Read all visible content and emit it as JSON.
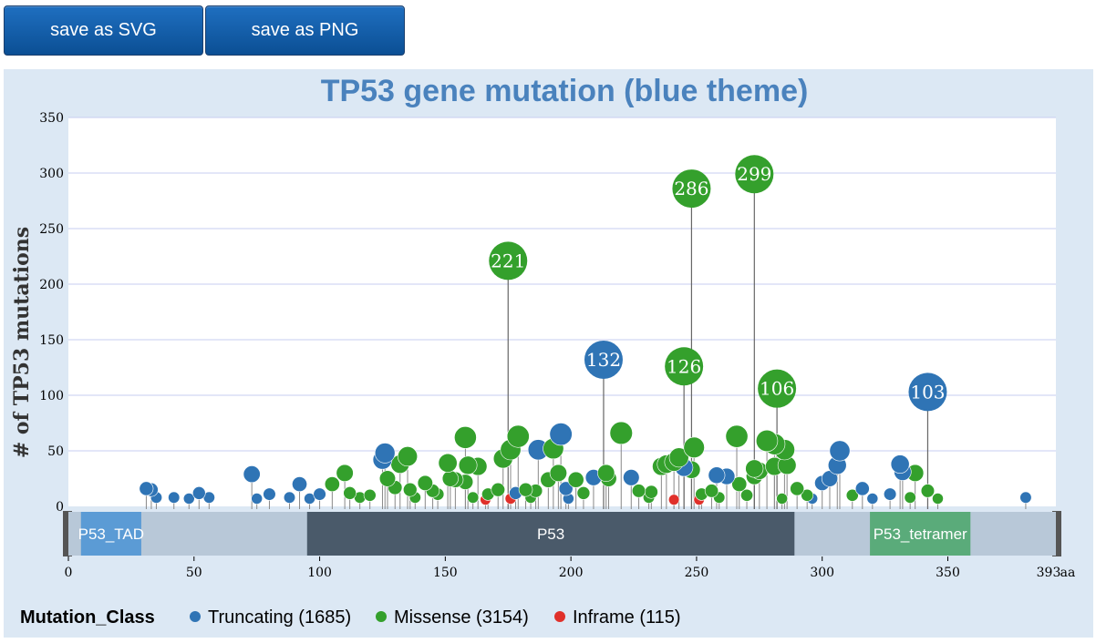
{
  "buttons": {
    "svg_label": "save as SVG",
    "png_label": "save as PNG"
  },
  "colors": {
    "truncating": "#2f74b5",
    "missense": "#34a02c",
    "inframe": "#e0302a",
    "title": "#4a82bd",
    "background": "#dce8f4"
  },
  "chart_data": {
    "type": "lollipop",
    "title": "TP53 gene mutation (blue theme)",
    "xlabel": "",
    "ylabel": "# of TP53 mutations",
    "x_unit_label": "aa",
    "xlim": [
      0,
      393
    ],
    "ylim": [
      0,
      350
    ],
    "x_ticks": [
      "0",
      "50",
      "100",
      "150",
      "200",
      "250",
      "300",
      "350"
    ],
    "x_end_label": "393",
    "y_ticks": [
      "0",
      "50",
      "100",
      "150",
      "200",
      "250",
      "300",
      "350"
    ],
    "grid": true,
    "domains": [
      {
        "name": "",
        "start": 0,
        "end": 96,
        "color": "#b8c8d8"
      },
      {
        "name": "P53_TAD",
        "start": 5,
        "end": 29,
        "color": "#5b9bd5"
      },
      {
        "name": "P53",
        "start": 95,
        "end": 289,
        "color": "#4a5a6a"
      },
      {
        "name": "",
        "start": 289,
        "end": 393,
        "color": "#b8c8d8"
      },
      {
        "name": "P53_tetramer",
        "start": 319,
        "end": 359,
        "color": "#5aab7a"
      }
    ],
    "labeled_points": [
      {
        "x": 273,
        "y": 299,
        "label": "299",
        "class": "missense"
      },
      {
        "x": 248,
        "y": 286,
        "label": "286",
        "class": "missense"
      },
      {
        "x": 175,
        "y": 221,
        "label": "221",
        "class": "missense"
      },
      {
        "x": 213,
        "y": 132,
        "label": "132",
        "class": "truncating"
      },
      {
        "x": 245,
        "y": 126,
        "label": "126",
        "class": "missense"
      },
      {
        "x": 282,
        "y": 106,
        "label": "106",
        "class": "missense"
      },
      {
        "x": 342,
        "y": 103,
        "label": "103",
        "class": "truncating"
      }
    ],
    "points": [
      {
        "x": 196,
        "y": 65,
        "class": "truncating"
      },
      {
        "x": 179,
        "y": 63,
        "class": "missense"
      },
      {
        "x": 220,
        "y": 66,
        "class": "missense"
      },
      {
        "x": 266,
        "y": 63,
        "class": "missense"
      },
      {
        "x": 158,
        "y": 62,
        "class": "missense"
      },
      {
        "x": 278,
        "y": 59,
        "class": "missense"
      },
      {
        "x": 281,
        "y": 56,
        "class": "missense"
      },
      {
        "x": 193,
        "y": 52,
        "class": "missense"
      },
      {
        "x": 187,
        "y": 51,
        "class": "truncating"
      },
      {
        "x": 176,
        "y": 51,
        "class": "missense"
      },
      {
        "x": 249,
        "y": 53,
        "class": "missense"
      },
      {
        "x": 285,
        "y": 51,
        "class": "missense"
      },
      {
        "x": 307,
        "y": 50,
        "class": "truncating"
      },
      {
        "x": 126,
        "y": 48,
        "class": "truncating"
      },
      {
        "x": 135,
        "y": 45,
        "class": "missense"
      },
      {
        "x": 173,
        "y": 43,
        "class": "missense"
      },
      {
        "x": 243,
        "y": 44,
        "class": "missense"
      },
      {
        "x": 125,
        "y": 42,
        "class": "truncating"
      },
      {
        "x": 151,
        "y": 39,
        "class": "missense"
      },
      {
        "x": 132,
        "y": 38,
        "class": "missense"
      },
      {
        "x": 241,
        "y": 40,
        "class": "missense"
      },
      {
        "x": 238,
        "y": 38,
        "class": "missense"
      },
      {
        "x": 236,
        "y": 36,
        "class": "missense"
      },
      {
        "x": 159,
        "y": 37,
        "class": "missense"
      },
      {
        "x": 163,
        "y": 36,
        "class": "missense"
      },
      {
        "x": 306,
        "y": 37,
        "class": "truncating"
      },
      {
        "x": 331,
        "y": 38,
        "class": "truncating"
      },
      {
        "x": 245,
        "y": 35,
        "class": "truncating"
      },
      {
        "x": 273,
        "y": 34,
        "class": "missense"
      },
      {
        "x": 286,
        "y": 37,
        "class": "missense"
      },
      {
        "x": 281,
        "y": 36,
        "class": "missense"
      },
      {
        "x": 248,
        "y": 33,
        "class": "missense"
      },
      {
        "x": 275,
        "y": 32,
        "class": "missense"
      },
      {
        "x": 337,
        "y": 30,
        "class": "missense"
      },
      {
        "x": 332,
        "y": 31,
        "class": "truncating"
      },
      {
        "x": 110,
        "y": 30,
        "class": "missense"
      },
      {
        "x": 73,
        "y": 29,
        "class": "truncating"
      },
      {
        "x": 195,
        "y": 30,
        "class": "missense"
      },
      {
        "x": 214,
        "y": 30,
        "class": "missense"
      },
      {
        "x": 258,
        "y": 28,
        "class": "truncating"
      },
      {
        "x": 262,
        "y": 27,
        "class": "truncating"
      },
      {
        "x": 273,
        "y": 27,
        "class": "missense"
      },
      {
        "x": 209,
        "y": 26,
        "class": "truncating"
      },
      {
        "x": 224,
        "y": 26,
        "class": "truncating"
      },
      {
        "x": 152,
        "y": 25,
        "class": "missense"
      },
      {
        "x": 127,
        "y": 25,
        "class": "missense"
      },
      {
        "x": 154,
        "y": 24,
        "class": "missense"
      },
      {
        "x": 191,
        "y": 24,
        "class": "missense"
      },
      {
        "x": 202,
        "y": 24,
        "class": "missense"
      },
      {
        "x": 215,
        "y": 25,
        "class": "missense"
      },
      {
        "x": 92,
        "y": 20,
        "class": "truncating"
      },
      {
        "x": 105,
        "y": 20,
        "class": "missense"
      },
      {
        "x": 142,
        "y": 21,
        "class": "missense"
      },
      {
        "x": 158,
        "y": 22,
        "class": "missense"
      },
      {
        "x": 267,
        "y": 20,
        "class": "missense"
      },
      {
        "x": 300,
        "y": 21,
        "class": "truncating"
      },
      {
        "x": 303,
        "y": 25,
        "class": "truncating"
      },
      {
        "x": 31,
        "y": 16,
        "class": "truncating"
      },
      {
        "x": 33,
        "y": 15,
        "class": "truncating"
      },
      {
        "x": 130,
        "y": 17,
        "class": "missense"
      },
      {
        "x": 136,
        "y": 15,
        "class": "missense"
      },
      {
        "x": 145,
        "y": 14,
        "class": "missense"
      },
      {
        "x": 171,
        "y": 15,
        "class": "missense"
      },
      {
        "x": 182,
        "y": 15,
        "class": "missense"
      },
      {
        "x": 186,
        "y": 14,
        "class": "missense"
      },
      {
        "x": 198,
        "y": 16,
        "class": "truncating"
      },
      {
        "x": 227,
        "y": 14,
        "class": "missense"
      },
      {
        "x": 232,
        "y": 13,
        "class": "missense"
      },
      {
        "x": 256,
        "y": 14,
        "class": "missense"
      },
      {
        "x": 290,
        "y": 16,
        "class": "missense"
      },
      {
        "x": 316,
        "y": 16,
        "class": "truncating"
      },
      {
        "x": 342,
        "y": 14,
        "class": "missense"
      },
      {
        "x": 52,
        "y": 12,
        "class": "truncating"
      },
      {
        "x": 80,
        "y": 11,
        "class": "truncating"
      },
      {
        "x": 100,
        "y": 11,
        "class": "truncating"
      },
      {
        "x": 112,
        "y": 12,
        "class": "missense"
      },
      {
        "x": 120,
        "y": 10,
        "class": "missense"
      },
      {
        "x": 147,
        "y": 11,
        "class": "missense"
      },
      {
        "x": 167,
        "y": 11,
        "class": "missense"
      },
      {
        "x": 178,
        "y": 12,
        "class": "truncating"
      },
      {
        "x": 205,
        "y": 12,
        "class": "missense"
      },
      {
        "x": 252,
        "y": 11,
        "class": "missense"
      },
      {
        "x": 270,
        "y": 10,
        "class": "missense"
      },
      {
        "x": 294,
        "y": 10,
        "class": "missense"
      },
      {
        "x": 312,
        "y": 10,
        "class": "missense"
      },
      {
        "x": 327,
        "y": 11,
        "class": "truncating"
      },
      {
        "x": 35,
        "y": 8,
        "class": "truncating"
      },
      {
        "x": 42,
        "y": 8,
        "class": "truncating"
      },
      {
        "x": 48,
        "y": 7,
        "class": "truncating"
      },
      {
        "x": 56,
        "y": 8,
        "class": "truncating"
      },
      {
        "x": 75,
        "y": 7,
        "class": "truncating"
      },
      {
        "x": 88,
        "y": 8,
        "class": "truncating"
      },
      {
        "x": 96,
        "y": 7,
        "class": "truncating"
      },
      {
        "x": 116,
        "y": 8,
        "class": "missense"
      },
      {
        "x": 138,
        "y": 8,
        "class": "missense"
      },
      {
        "x": 161,
        "y": 8,
        "class": "missense"
      },
      {
        "x": 184,
        "y": 8,
        "class": "missense"
      },
      {
        "x": 199,
        "y": 7,
        "class": "truncating"
      },
      {
        "x": 231,
        "y": 8,
        "class": "missense"
      },
      {
        "x": 259,
        "y": 8,
        "class": "missense"
      },
      {
        "x": 284,
        "y": 7,
        "class": "missense"
      },
      {
        "x": 296,
        "y": 7,
        "class": "truncating"
      },
      {
        "x": 320,
        "y": 7,
        "class": "truncating"
      },
      {
        "x": 335,
        "y": 8,
        "class": "missense"
      },
      {
        "x": 346,
        "y": 7,
        "class": "missense"
      },
      {
        "x": 381,
        "y": 8,
        "class": "truncating"
      },
      {
        "x": 166,
        "y": 6,
        "class": "inframe"
      },
      {
        "x": 176,
        "y": 7,
        "class": "inframe"
      },
      {
        "x": 241,
        "y": 6,
        "class": "inframe"
      },
      {
        "x": 251,
        "y": 6,
        "class": "inframe"
      }
    ],
    "legend": {
      "title": "Mutation_Class",
      "placement": "bottom-left",
      "items": [
        {
          "label": "Truncating (1685)",
          "class": "truncating"
        },
        {
          "label": "Missense (3154)",
          "class": "missense"
        },
        {
          "label": "Inframe (115)",
          "class": "inframe"
        }
      ]
    }
  }
}
